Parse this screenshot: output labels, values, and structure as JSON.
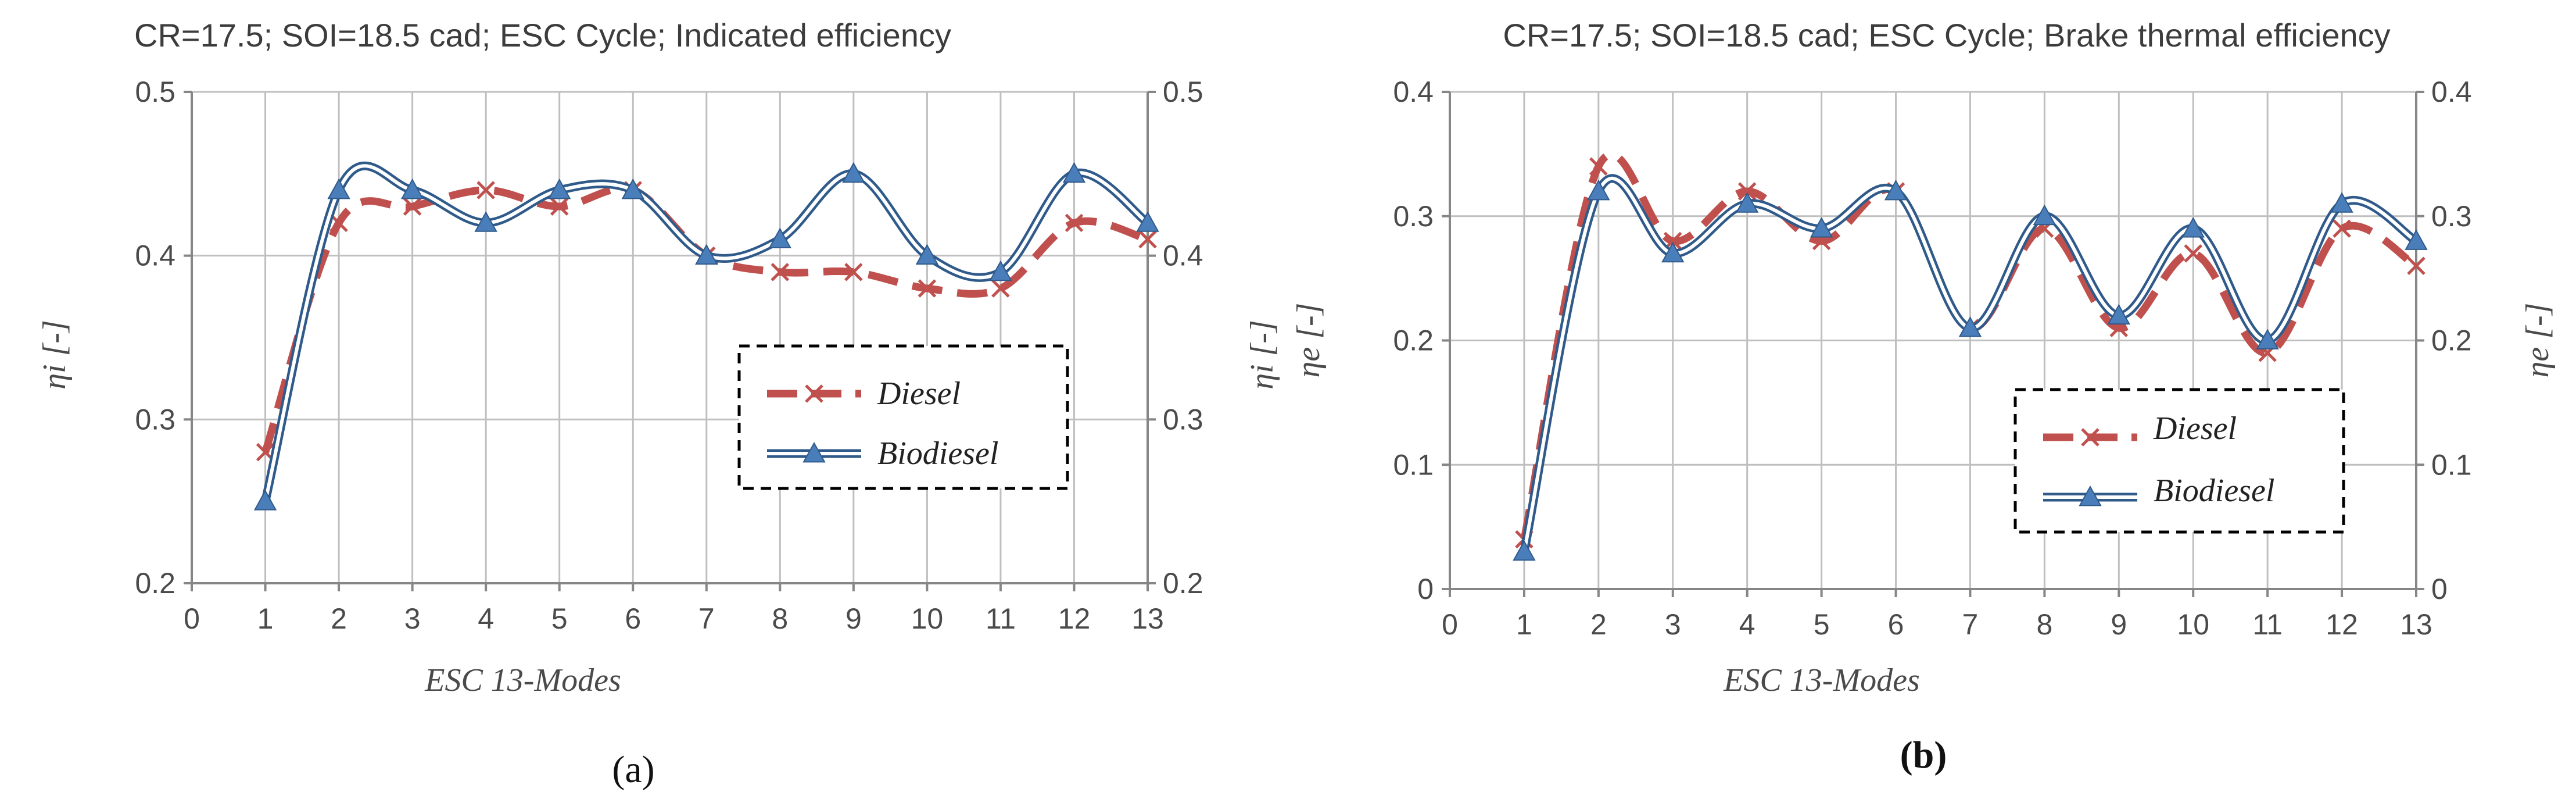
{
  "figure": {
    "panel_labels": [
      "(a)",
      "(b)"
    ]
  },
  "colors": {
    "diesel": "#c0504d",
    "biodiesel": "#4a7ebb",
    "grid": "#bfbfbf",
    "axis": "#868686"
  },
  "icons": {
    "diesel_marker": "x-marker-icon",
    "biodiesel_marker": "triangle-marker-icon"
  },
  "chart_data": [
    {
      "type": "line",
      "title": "CR=17.5; SOI=18.5 cad; ESC Cycle; Indicated efficiency",
      "xlabel": "ESC 13-Modes",
      "ylabel": "ηi [-]",
      "ylabel_right": "ηi [-]",
      "xlim": [
        0,
        13
      ],
      "ylim": [
        0.2,
        0.5
      ],
      "x_ticks": [
        "0",
        "1",
        "2",
        "3",
        "4",
        "5",
        "6",
        "7",
        "8",
        "9",
        "10",
        "11",
        "12",
        "13"
      ],
      "y_ticks": [
        "0.2",
        "0.3",
        "0.4",
        "0.5"
      ],
      "y_tick_values": [
        0.2,
        0.3,
        0.4,
        0.5
      ],
      "grid": true,
      "legend_position": "center-right",
      "x": [
        1,
        2,
        3,
        4,
        5,
        6,
        7,
        8,
        9,
        10,
        11,
        12,
        13
      ],
      "series": [
        {
          "name": "Diesel",
          "marker": "x",
          "values": [
            0.28,
            0.42,
            0.43,
            0.44,
            0.43,
            0.44,
            0.4,
            0.39,
            0.39,
            0.38,
            0.38,
            0.42,
            0.41
          ]
        },
        {
          "name": "Biodiesel",
          "marker": "triangle",
          "values": [
            0.25,
            0.44,
            0.44,
            0.42,
            0.44,
            0.44,
            0.4,
            0.41,
            0.45,
            0.4,
            0.39,
            0.45,
            0.42
          ]
        }
      ]
    },
    {
      "type": "line",
      "title": "CR=17.5; SOI=18.5 cad; ESC Cycle; Brake thermal efficiency",
      "xlabel": "ESC 13-Modes",
      "ylabel": "ηe [-]",
      "ylabel_right": "ηe [-]",
      "xlim": [
        0,
        13
      ],
      "ylim": [
        0,
        0.4
      ],
      "x_ticks": [
        "0",
        "1",
        "2",
        "3",
        "4",
        "5",
        "6",
        "7",
        "8",
        "9",
        "10",
        "11",
        "12",
        "13"
      ],
      "y_ticks": [
        "0",
        "0.1",
        "0.2",
        "0.3",
        "0.4"
      ],
      "y_tick_values": [
        0,
        0.1,
        0.2,
        0.3,
        0.4
      ],
      "grid": true,
      "legend_position": "bottom-right",
      "x": [
        1,
        2,
        3,
        4,
        5,
        6,
        7,
        8,
        9,
        10,
        11,
        12,
        13
      ],
      "series": [
        {
          "name": "Diesel",
          "marker": "x",
          "values": [
            0.04,
            0.34,
            0.28,
            0.32,
            0.28,
            0.32,
            0.21,
            0.29,
            0.21,
            0.27,
            0.19,
            0.29,
            0.26
          ]
        },
        {
          "name": "Biodiesel",
          "marker": "triangle",
          "values": [
            0.03,
            0.32,
            0.27,
            0.31,
            0.29,
            0.32,
            0.21,
            0.3,
            0.22,
            0.29,
            0.2,
            0.31,
            0.28
          ]
        }
      ]
    }
  ]
}
